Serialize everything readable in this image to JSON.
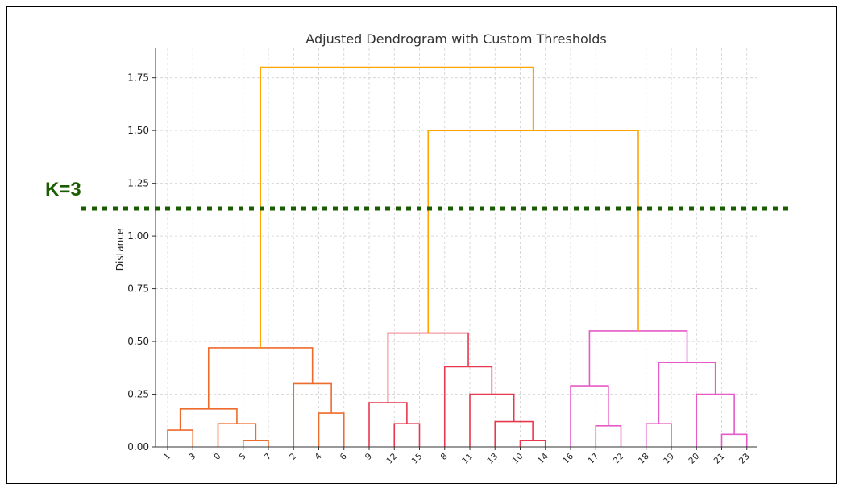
{
  "chart_data": {
    "type": "dendrogram",
    "title": "Adjusted Dendrogram with Custom Thresholds",
    "xlabel": "",
    "ylabel": "Distance",
    "ylim": [
      0,
      1.89
    ],
    "yticks": [
      "0.00",
      "0.25",
      "0.50",
      "0.75",
      "1.00",
      "1.25",
      "1.50",
      "1.75"
    ],
    "ytick_values": [
      0,
      0.25,
      0.5,
      0.75,
      1.0,
      1.25,
      1.5,
      1.75
    ],
    "leaves": [
      "1",
      "3",
      "0",
      "5",
      "7",
      "2",
      "4",
      "6",
      "9",
      "12",
      "15",
      "8",
      "11",
      "13",
      "10",
      "14",
      "16",
      "17",
      "22",
      "18",
      "19",
      "20",
      "21",
      "23"
    ],
    "grid": true,
    "colors": {
      "cluster_1": "#ed6b2d",
      "cluster_2": "#e8384f",
      "cluster_3": "#e65bc8",
      "link_above_threshold": "#ffa500",
      "threshold_line": "#1a5c00"
    },
    "merges": [
      {
        "left": 0,
        "right": 1,
        "height": 0.08,
        "color": "cluster_1"
      },
      {
        "left": 3,
        "right": 4,
        "height": 0.03,
        "color": "cluster_1"
      },
      {
        "left": 2,
        "right": "m1",
        "height": 0.11,
        "color": "cluster_1"
      },
      {
        "left": "m0",
        "right": "m2",
        "height": 0.18,
        "color": "cluster_1"
      },
      {
        "left": 6,
        "right": 7,
        "height": 0.16,
        "color": "cluster_1"
      },
      {
        "left": 5,
        "right": "m4",
        "height": 0.3,
        "color": "cluster_1"
      },
      {
        "left": "m3",
        "right": "m5",
        "height": 0.47,
        "color": "cluster_1"
      },
      {
        "left": 9,
        "right": 10,
        "height": 0.11,
        "color": "cluster_2"
      },
      {
        "left": 8,
        "right": "m7",
        "height": 0.21,
        "color": "cluster_2"
      },
      {
        "left": 14,
        "right": 15,
        "height": 0.03,
        "color": "cluster_2"
      },
      {
        "left": 13,
        "right": "m9",
        "height": 0.12,
        "color": "cluster_2"
      },
      {
        "left": 12,
        "right": "m10",
        "height": 0.25,
        "color": "cluster_2"
      },
      {
        "left": 11,
        "right": "m11",
        "height": 0.38,
        "color": "cluster_2"
      },
      {
        "left": "m8",
        "right": "m12",
        "height": 0.54,
        "color": "cluster_2"
      },
      {
        "left": 17,
        "right": 18,
        "height": 0.1,
        "color": "cluster_3"
      },
      {
        "left": 16,
        "right": "m14",
        "height": 0.29,
        "color": "cluster_3"
      },
      {
        "left": 19,
        "right": 20,
        "height": 0.11,
        "color": "cluster_3"
      },
      {
        "left": 22,
        "right": 23,
        "height": 0.06,
        "color": "cluster_3"
      },
      {
        "left": 21,
        "right": "m17",
        "height": 0.25,
        "color": "cluster_3"
      },
      {
        "left": "m16",
        "right": "m18",
        "height": 0.4,
        "color": "cluster_3"
      },
      {
        "left": "m15",
        "right": "m19",
        "height": 0.55,
        "color": "cluster_3"
      },
      {
        "left": "m13",
        "right": "m20",
        "height": 1.5,
        "color": "link_above_threshold"
      },
      {
        "left": "m6",
        "right": "m21",
        "height": 1.8,
        "color": "link_above_threshold"
      }
    ],
    "threshold": {
      "label": "K=3",
      "value": 1.13
    }
  }
}
